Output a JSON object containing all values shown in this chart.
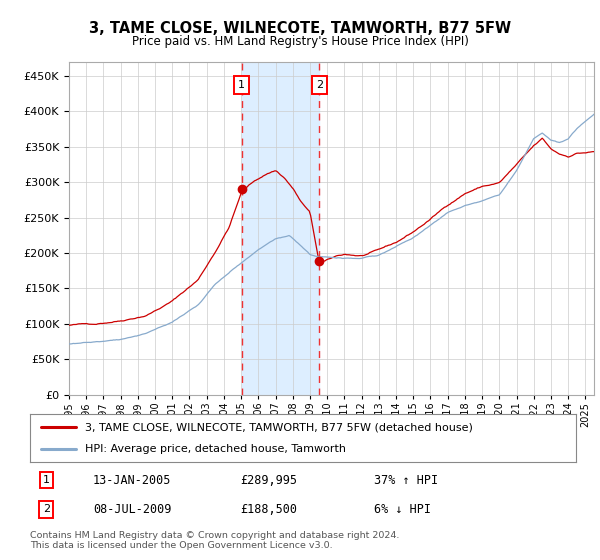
{
  "title": "3, TAME CLOSE, WILNECOTE, TAMWORTH, B77 5FW",
  "subtitle": "Price paid vs. HM Land Registry's House Price Index (HPI)",
  "ylim": [
    0,
    470000
  ],
  "xlim_start": 1995.0,
  "xlim_end": 2025.5,
  "line1_color": "#cc0000",
  "line2_color": "#88aacc",
  "marker1_date": 2005.04,
  "marker2_date": 2009.54,
  "marker1_price": 289995,
  "marker2_price": 188500,
  "vline_color": "#ee3333",
  "shade_color": "#ddeeff",
  "legend_label1": "3, TAME CLOSE, WILNECOTE, TAMWORTH, B77 5FW (detached house)",
  "legend_label2": "HPI: Average price, detached house, Tamworth",
  "annot1_text": "13-JAN-2005",
  "annot1_price": "£289,995",
  "annot1_hpi": "37% ↑ HPI",
  "annot2_text": "08-JUL-2009",
  "annot2_price": "£188,500",
  "annot2_hpi": "6% ↓ HPI",
  "footer": "Contains HM Land Registry data © Crown copyright and database right 2024.\nThis data is licensed under the Open Government Licence v3.0.",
  "background_color": "#ffffff",
  "grid_color": "#cccccc"
}
